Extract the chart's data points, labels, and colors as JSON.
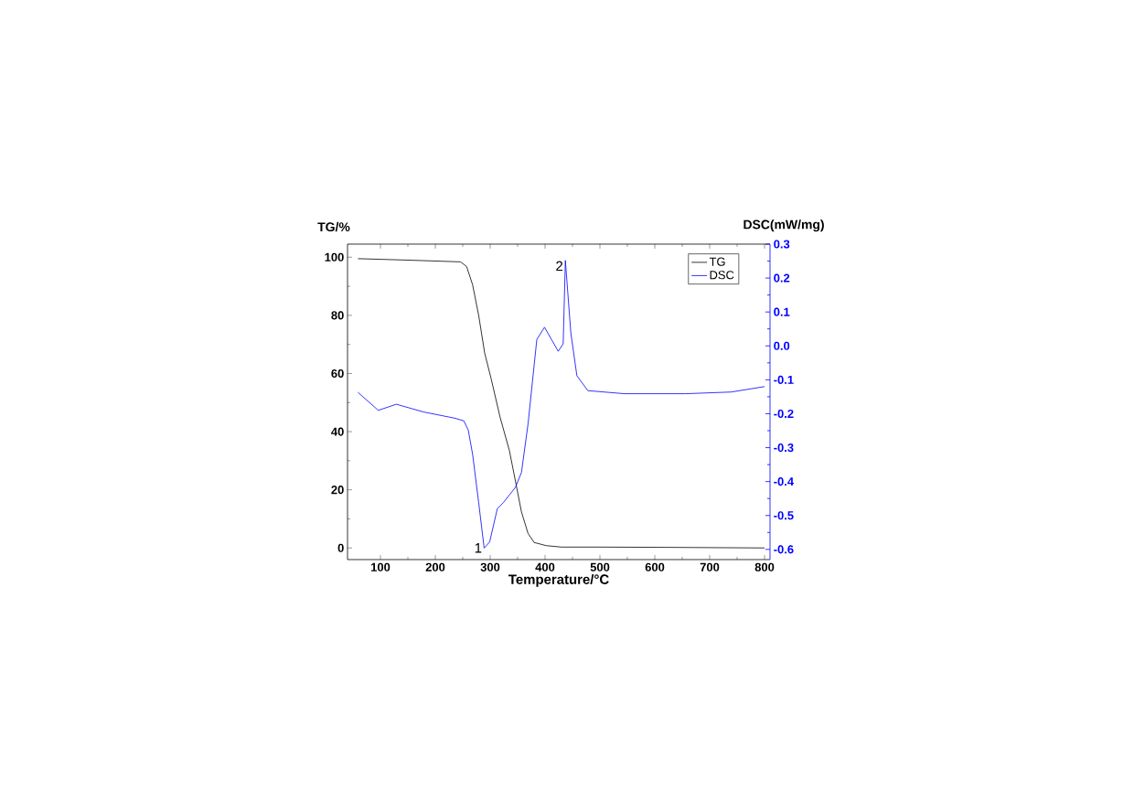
{
  "chart_data": {
    "type": "line",
    "xlabel": "Temperature/°C",
    "ylabel": "TG/%",
    "y2label": "DSC(mW/mg)",
    "xlim": [
      40,
      810
    ],
    "ylim": [
      -4,
      104.5
    ],
    "y2lim": [
      -0.63,
      0.3
    ],
    "xticks": [
      100,
      200,
      300,
      400,
      500,
      600,
      700,
      800
    ],
    "yticks": [
      0,
      20,
      40,
      60,
      80,
      100
    ],
    "y2ticks": [
      -0.6,
      -0.5,
      -0.4,
      -0.3,
      -0.2,
      -0.1,
      {
        "value": 0,
        "label": "0.0"
      },
      0.1,
      0.2,
      0.3
    ],
    "legend": "top right",
    "grid": false,
    "line_style": "solid",
    "series": [
      {
        "name": "TG",
        "color": "#000000",
        "x": [
          59,
          150,
          246,
          257,
          268,
          279,
          290,
          302,
          318,
          335,
          346,
          357,
          369,
          380,
          402,
          430,
          500,
          630,
          800
        ],
        "values": [
          99.5,
          99,
          98.4,
          96.8,
          90.5,
          80,
          67,
          58,
          45,
          33.5,
          23,
          12.4,
          5,
          1.9,
          0.8,
          0.3,
          0.3,
          0.2,
          0
        ]
      },
      {
        "name": "DSC",
        "color": "#0000ff",
        "axis": "y2",
        "x": [
          59,
          96,
          129,
          179,
          235,
          252,
          260,
          268,
          279,
          289,
          299,
          313,
          324,
          346,
          357,
          369,
          385,
          399,
          424,
          433,
          437,
          447,
          458,
          478,
          545,
          656,
          739,
          800
        ],
        "values": [
          -0.137,
          -0.19,
          -0.172,
          -0.195,
          -0.213,
          -0.221,
          -0.248,
          -0.32,
          -0.462,
          -0.596,
          -0.578,
          -0.48,
          -0.462,
          -0.417,
          -0.373,
          -0.23,
          0.019,
          0.055,
          -0.016,
          0.006,
          0.252,
          0.038,
          -0.088,
          -0.132,
          -0.141,
          -0.141,
          -0.136,
          -0.12
        ]
      }
    ],
    "annotations": [
      {
        "text": "1",
        "x": 289,
        "y": 0
      },
      {
        "text": "2",
        "x": 437,
        "y": 97
      }
    ]
  }
}
